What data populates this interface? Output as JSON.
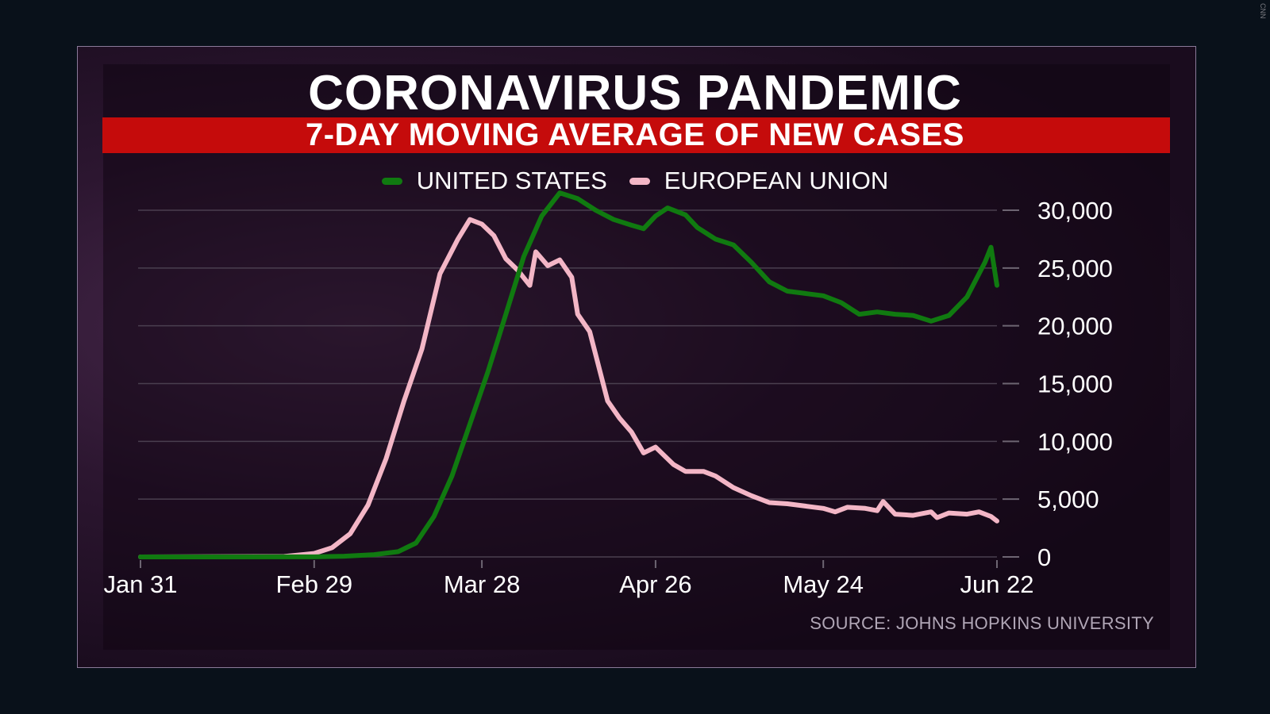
{
  "watermark": "CNN",
  "chart_data": {
    "type": "line",
    "title": "CORONAVIRUS PANDEMIC",
    "subtitle": "7-DAY MOVING AVERAGE OF NEW CASES",
    "source": "SOURCE: JOHNS HOPKINS UNIVERSITY",
    "x_start": "2020-01-31",
    "x_end": "2020-06-22",
    "xticks": [
      {
        "label": "Jan 31",
        "date": "2020-01-31"
      },
      {
        "label": "Feb 29",
        "date": "2020-02-29"
      },
      {
        "label": "Mar 28",
        "date": "2020-03-28"
      },
      {
        "label": "Apr 26",
        "date": "2020-04-26"
      },
      {
        "label": "May 24",
        "date": "2020-05-24"
      },
      {
        "label": "Jun 22",
        "date": "2020-06-22"
      }
    ],
    "yticks": [
      {
        "label": "0",
        "value": 0
      },
      {
        "label": "5,000",
        "value": 5000
      },
      {
        "label": "10,000",
        "value": 10000
      },
      {
        "label": "15,000",
        "value": 15000
      },
      {
        "label": "20,000",
        "value": 20000
      },
      {
        "label": "25,000",
        "value": 25000
      },
      {
        "label": "30,000",
        "value": 30000
      }
    ],
    "ylim": [
      0,
      30000
    ],
    "grid": true,
    "legend_position": "top-center",
    "series": [
      {
        "name": "UNITED STATES",
        "color": "#107a10",
        "points": [
          [
            "2020-01-31",
            0
          ],
          [
            "2020-02-29",
            10
          ],
          [
            "2020-03-05",
            60
          ],
          [
            "2020-03-10",
            200
          ],
          [
            "2020-03-14",
            450
          ],
          [
            "2020-03-17",
            1200
          ],
          [
            "2020-03-20",
            3500
          ],
          [
            "2020-03-23",
            7000
          ],
          [
            "2020-03-26",
            11500
          ],
          [
            "2020-03-29",
            16000
          ],
          [
            "2020-04-01",
            21000
          ],
          [
            "2020-04-04",
            26000
          ],
          [
            "2020-04-07",
            29500
          ],
          [
            "2020-04-10",
            31500
          ],
          [
            "2020-04-13",
            31000
          ],
          [
            "2020-04-16",
            30000
          ],
          [
            "2020-04-19",
            29200
          ],
          [
            "2020-04-22",
            28700
          ],
          [
            "2020-04-24",
            28400
          ],
          [
            "2020-04-26",
            29500
          ],
          [
            "2020-04-28",
            30200
          ],
          [
            "2020-05-01",
            29600
          ],
          [
            "2020-05-03",
            28500
          ],
          [
            "2020-05-06",
            27500
          ],
          [
            "2020-05-09",
            27000
          ],
          [
            "2020-05-12",
            25500
          ],
          [
            "2020-05-15",
            23800
          ],
          [
            "2020-05-18",
            23000
          ],
          [
            "2020-05-21",
            22800
          ],
          [
            "2020-05-24",
            22600
          ],
          [
            "2020-05-27",
            22000
          ],
          [
            "2020-05-30",
            21000
          ],
          [
            "2020-06-02",
            21200
          ],
          [
            "2020-06-05",
            21000
          ],
          [
            "2020-06-08",
            20900
          ],
          [
            "2020-06-11",
            20400
          ],
          [
            "2020-06-14",
            20900
          ],
          [
            "2020-06-17",
            22500
          ],
          [
            "2020-06-20",
            25500
          ],
          [
            "2020-06-21",
            26800
          ],
          [
            "2020-06-22",
            23500
          ]
        ]
      },
      {
        "name": "EUROPEAN UNION",
        "color": "#f3b6c6",
        "points": [
          [
            "2020-01-31",
            0
          ],
          [
            "2020-02-24",
            40
          ],
          [
            "2020-02-29",
            300
          ],
          [
            "2020-03-03",
            800
          ],
          [
            "2020-03-06",
            2000
          ],
          [
            "2020-03-09",
            4500
          ],
          [
            "2020-03-12",
            8500
          ],
          [
            "2020-03-15",
            13500
          ],
          [
            "2020-03-18",
            18000
          ],
          [
            "2020-03-21",
            24500
          ],
          [
            "2020-03-24",
            27500
          ],
          [
            "2020-03-26",
            29200
          ],
          [
            "2020-03-28",
            28800
          ],
          [
            "2020-03-30",
            27800
          ],
          [
            "2020-04-01",
            25800
          ],
          [
            "2020-04-03",
            24800
          ],
          [
            "2020-04-05",
            23500
          ],
          [
            "2020-04-06",
            26400
          ],
          [
            "2020-04-08",
            25200
          ],
          [
            "2020-04-10",
            25700
          ],
          [
            "2020-04-12",
            24200
          ],
          [
            "2020-04-13",
            21000
          ],
          [
            "2020-04-15",
            19500
          ],
          [
            "2020-04-18",
            13500
          ],
          [
            "2020-04-20",
            12000
          ],
          [
            "2020-04-22",
            10800
          ],
          [
            "2020-04-24",
            9000
          ],
          [
            "2020-04-26",
            9500
          ],
          [
            "2020-04-29",
            8000
          ],
          [
            "2020-05-01",
            7400
          ],
          [
            "2020-05-04",
            7400
          ],
          [
            "2020-05-06",
            7000
          ],
          [
            "2020-05-09",
            6000
          ],
          [
            "2020-05-12",
            5300
          ],
          [
            "2020-05-15",
            4700
          ],
          [
            "2020-05-18",
            4600
          ],
          [
            "2020-05-21",
            4400
          ],
          [
            "2020-05-24",
            4200
          ],
          [
            "2020-05-26",
            3900
          ],
          [
            "2020-05-28",
            4300
          ],
          [
            "2020-05-31",
            4200
          ],
          [
            "2020-06-02",
            4000
          ],
          [
            "2020-06-03",
            4800
          ],
          [
            "2020-06-05",
            3700
          ],
          [
            "2020-06-08",
            3600
          ],
          [
            "2020-06-11",
            3900
          ],
          [
            "2020-06-12",
            3400
          ],
          [
            "2020-06-14",
            3800
          ],
          [
            "2020-06-17",
            3700
          ],
          [
            "2020-06-19",
            3900
          ],
          [
            "2020-06-21",
            3500
          ],
          [
            "2020-06-22",
            3100
          ]
        ]
      }
    ]
  }
}
